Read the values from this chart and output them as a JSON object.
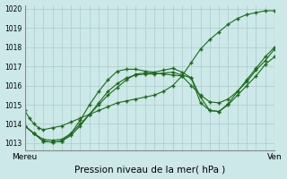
{
  "title": "Pression niveau de la mer( hPa )",
  "xlabel_left": "Mereu",
  "xlabel_right": "Ven",
  "ylim": [
    1012.6,
    1020.2
  ],
  "xlim": [
    0,
    27
  ],
  "yticks": [
    1013,
    1014,
    1015,
    1016,
    1017,
    1018,
    1019,
    1020
  ],
  "background_color": "#cce8e8",
  "grid_color": "#aacccc",
  "line_color": "#1a6b1a",
  "series1_x": [
    0.0,
    0.5,
    1.0,
    1.5,
    2.0,
    3.0,
    4.0,
    5.0,
    6.0,
    7.0,
    8.0,
    9.0,
    10.0,
    11.0,
    12.0,
    13.0,
    14.0,
    15.0,
    16.0,
    17.0,
    18.0,
    19.0,
    20.0,
    21.0,
    22.0,
    23.0,
    24.0,
    25.0,
    26.0,
    27.0
  ],
  "series1_y": [
    1014.7,
    1014.3,
    1014.0,
    1013.8,
    1013.7,
    1013.8,
    1013.9,
    1014.1,
    1014.3,
    1014.5,
    1014.7,
    1014.9,
    1015.1,
    1015.2,
    1015.3,
    1015.4,
    1015.5,
    1015.7,
    1016.0,
    1016.5,
    1017.2,
    1017.9,
    1018.4,
    1018.8,
    1019.2,
    1019.5,
    1019.7,
    1019.8,
    1019.9,
    1019.9
  ],
  "series2_x": [
    0.0,
    1.0,
    2.0,
    3.0,
    4.0,
    5.0,
    6.0,
    7.0,
    8.0,
    9.0,
    10.0,
    11.0,
    12.0,
    13.0,
    14.0,
    15.0,
    16.0,
    17.0,
    18.0,
    19.0,
    20.0,
    21.0,
    22.0,
    23.0,
    24.0,
    25.0,
    26.0,
    27.0
  ],
  "series2_y": [
    1013.9,
    1013.5,
    1013.2,
    1013.15,
    1013.2,
    1013.5,
    1014.0,
    1014.5,
    1015.0,
    1015.5,
    1015.9,
    1016.3,
    1016.6,
    1016.65,
    1016.65,
    1016.6,
    1016.55,
    1016.5,
    1016.0,
    1015.5,
    1015.15,
    1015.1,
    1015.3,
    1015.7,
    1016.3,
    1016.9,
    1017.5,
    1018.0
  ],
  "series3_x": [
    0.0,
    1.0,
    2.0,
    3.0,
    4.0,
    5.0,
    6.0,
    7.0,
    8.0,
    9.0,
    10.0,
    11.0,
    12.0,
    13.0,
    14.0,
    15.0,
    16.0,
    17.0,
    18.0,
    19.0,
    20.0,
    21.0,
    22.0,
    23.0,
    24.0,
    25.0,
    26.0,
    27.0
  ],
  "series3_y": [
    1013.9,
    1013.5,
    1013.1,
    1013.05,
    1013.1,
    1013.5,
    1014.2,
    1015.0,
    1015.7,
    1016.3,
    1016.75,
    1016.85,
    1016.85,
    1016.75,
    1016.7,
    1016.8,
    1016.9,
    1016.7,
    1016.4,
    1015.4,
    1014.7,
    1014.65,
    1015.0,
    1015.5,
    1016.0,
    1016.5,
    1017.1,
    1017.5
  ],
  "series4_x": [
    0.0,
    1.0,
    2.0,
    3.0,
    4.0,
    5.0,
    6.0,
    7.0,
    8.0,
    9.0,
    10.0,
    11.0,
    12.0,
    13.0,
    14.0,
    15.0,
    16.0,
    17.0,
    18.0,
    19.0,
    20.0,
    21.0,
    22.0,
    23.0,
    24.0,
    25.0,
    26.0,
    27.0
  ],
  "series4_y": [
    1013.9,
    1013.5,
    1013.1,
    1013.05,
    1013.1,
    1013.4,
    1013.9,
    1014.5,
    1015.1,
    1015.7,
    1016.1,
    1016.4,
    1016.55,
    1016.6,
    1016.6,
    1016.65,
    1016.7,
    1016.55,
    1016.4,
    1015.1,
    1014.7,
    1014.65,
    1015.05,
    1015.7,
    1016.2,
    1016.8,
    1017.3,
    1017.9
  ]
}
